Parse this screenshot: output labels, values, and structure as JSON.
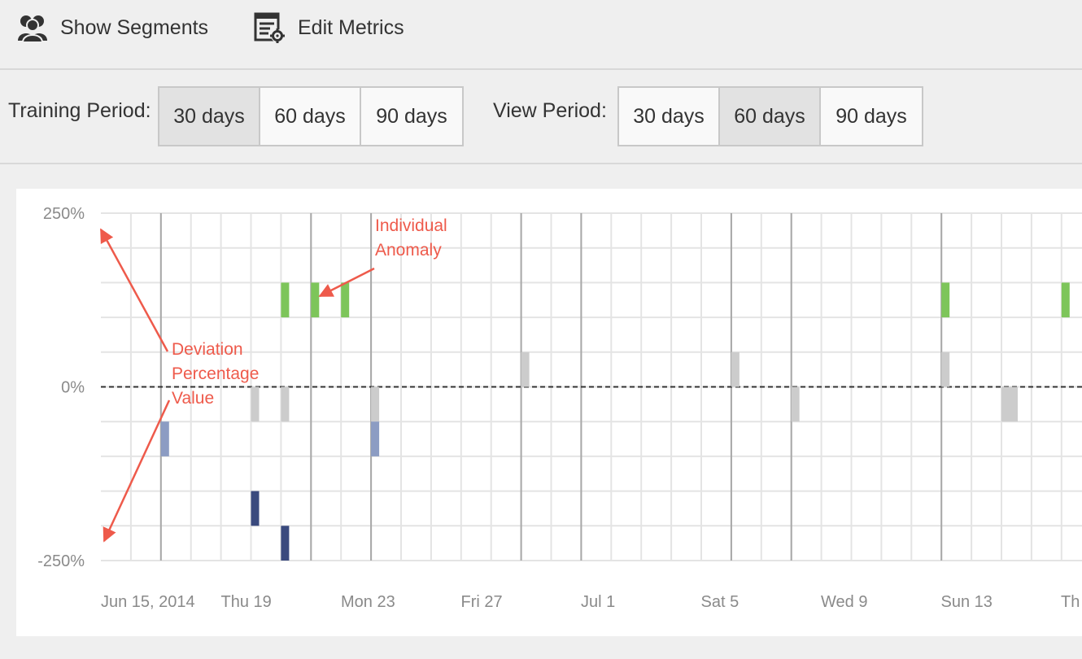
{
  "toolbar": {
    "show_segments_label": "Show Segments",
    "edit_metrics_label": "Edit Metrics",
    "show_segments_icon": "users-icon",
    "edit_metrics_icon": "list-gear-icon"
  },
  "training_period": {
    "label": "Training Period:",
    "options": [
      "30 days",
      "60 days",
      "90 days"
    ],
    "selected": "30 days"
  },
  "view_period": {
    "label": "View Period:",
    "options": [
      "30 days",
      "60 days",
      "90 days"
    ],
    "selected": "60 days"
  },
  "colors": {
    "positive": "#7dc55a",
    "neutral": "#cccccc",
    "negative_light": "#8c9cc3",
    "negative_dark": "#3a4a7e",
    "annotation": "#ee5a4b"
  },
  "annotations": {
    "individual_anomaly": [
      "Individual",
      "Anomaly"
    ],
    "deviation_value": [
      "Deviation",
      "Percentage",
      "Value"
    ]
  },
  "chart_data": {
    "type": "bar",
    "ylim": [
      -250,
      250
    ],
    "y_tick_labels": [
      "250%",
      "0%",
      "-250%"
    ],
    "x_tick_labels": [
      "Jun 15, 2014",
      "Thu 19",
      "Mon 23",
      "Fri 27",
      "Jul 1",
      "Sat 5",
      "Wed 9",
      "Sun 13",
      "Th"
    ],
    "x_start": "2014-06-14",
    "baseline": 0,
    "bars": [
      {
        "date": "2014-06-15",
        "value": -100,
        "kind": "negative_light"
      },
      {
        "date": "2014-06-18",
        "value": -200,
        "kind": "negative_dark"
      },
      {
        "date": "2014-06-18",
        "value": -50,
        "kind": "neutral"
      },
      {
        "date": "2014-06-19",
        "value": 150,
        "kind": "positive"
      },
      {
        "date": "2014-06-19",
        "value": -50,
        "kind": "neutral"
      },
      {
        "date": "2014-06-19",
        "value": -250,
        "kind": "negative_dark"
      },
      {
        "date": "2014-06-20",
        "value": 150,
        "kind": "positive"
      },
      {
        "date": "2014-06-21",
        "value": 150,
        "kind": "positive"
      },
      {
        "date": "2014-06-22",
        "value": -50,
        "kind": "neutral"
      },
      {
        "date": "2014-06-22",
        "value": -100,
        "kind": "negative_light"
      },
      {
        "date": "2014-06-27",
        "value": 50,
        "kind": "neutral"
      },
      {
        "date": "2014-07-04",
        "value": 50,
        "kind": "neutral"
      },
      {
        "date": "2014-07-06",
        "value": -50,
        "kind": "neutral"
      },
      {
        "date": "2014-07-11",
        "value": 150,
        "kind": "positive"
      },
      {
        "date": "2014-07-11",
        "value": 50,
        "kind": "neutral"
      },
      {
        "date": "2014-07-13",
        "value": -50,
        "kind": "neutral"
      },
      {
        "date": "2014-07-13",
        "value": -50,
        "kind": "neutral"
      },
      {
        "date": "2014-07-15",
        "value": 150,
        "kind": "positive"
      }
    ]
  }
}
